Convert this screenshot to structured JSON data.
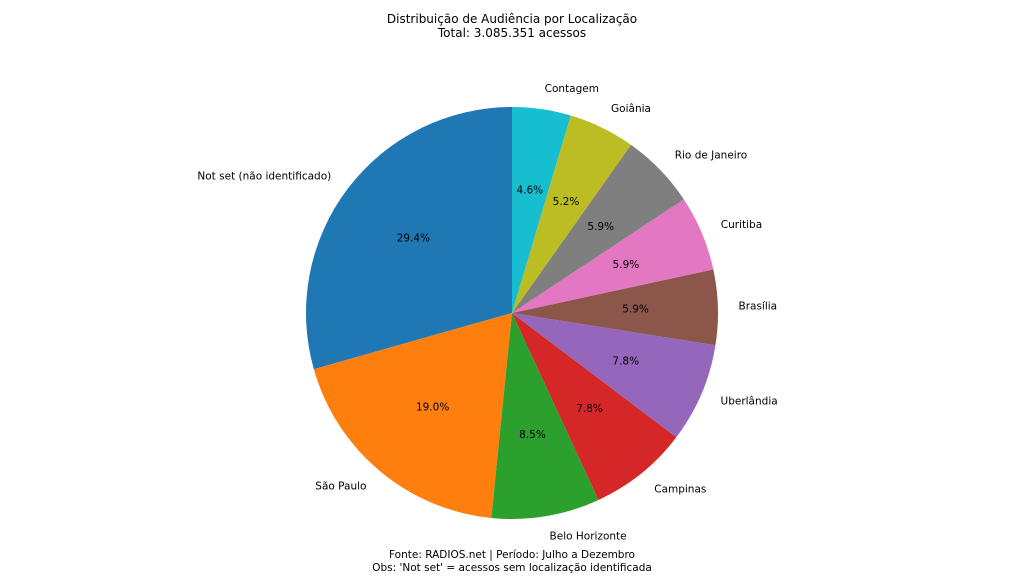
{
  "chart_data": {
    "type": "pie",
    "title": "Distribuição de Audiência por Localização",
    "subtitle": "Total: 3.085.351 acessos",
    "footer": [
      "Fonte: RADIOS.net | Período: Julho a Dezembro",
      "Obs: 'Not set' = acessos sem localização identificada"
    ],
    "start_angle_deg": 90,
    "direction": "counterclockwise",
    "slices": [
      {
        "label": "Not set (não identificado)",
        "value": 29.4,
        "pct_label": "29.4%",
        "color": "#1f77b4"
      },
      {
        "label": "São Paulo",
        "value": 19.0,
        "pct_label": "19.0%",
        "color": "#ff7f0e"
      },
      {
        "label": "Belo Horizonte",
        "value": 8.5,
        "pct_label": "8.5%",
        "color": "#2ca02c"
      },
      {
        "label": "Campinas",
        "value": 7.8,
        "pct_label": "7.8%",
        "color": "#d62728"
      },
      {
        "label": "Uberlândia",
        "value": 7.8,
        "pct_label": "7.8%",
        "color": "#9467bd"
      },
      {
        "label": "Brasília",
        "value": 5.9,
        "pct_label": "5.9%",
        "color": "#8c564b"
      },
      {
        "label": "Curitiba",
        "value": 5.9,
        "pct_label": "5.9%",
        "color": "#e377c2"
      },
      {
        "label": "Rio de Janeiro",
        "value": 5.9,
        "pct_label": "5.9%",
        "color": "#7f7f7f"
      },
      {
        "label": "Goiânia",
        "value": 5.2,
        "pct_label": "5.2%",
        "color": "#bcbd22"
      },
      {
        "label": "Contagem",
        "value": 4.6,
        "pct_label": "4.6%",
        "color": "#17becf"
      }
    ]
  }
}
